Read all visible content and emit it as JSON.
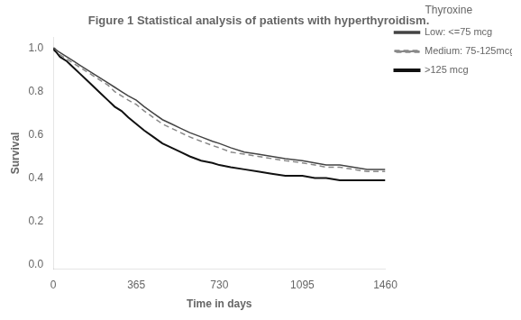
{
  "chart_data": {
    "type": "line",
    "title": "Figure 1 Statistical analysis of patients with hyperthyroidism.",
    "xlabel": "Time in days",
    "ylabel": "Survival",
    "legend_title": "Thyroxine",
    "legend": "right",
    "grid": false,
    "xlim": [
      0,
      1460
    ],
    "ylim": [
      -0.02,
      1.05
    ],
    "xticks": [
      0,
      365,
      730,
      1095,
      1460
    ],
    "yticks": [
      {
        "value": 0.0,
        "label": "0.0"
      },
      0.2,
      0.4,
      0.6,
      0.8,
      {
        "value": 1.0,
        "label": "1.0"
      }
    ],
    "x": [
      0,
      5,
      15,
      30,
      60,
      90,
      120,
      150,
      180,
      210,
      240,
      270,
      300,
      330,
      365,
      400,
      440,
      480,
      520,
      560,
      600,
      650,
      700,
      730,
      780,
      840,
      900,
      960,
      1020,
      1095,
      1150,
      1200,
      1260,
      1320,
      1380,
      1460
    ],
    "series": [
      {
        "name": "Low: <=75 mcg",
        "color": "#444444",
        "line_style": "solid",
        "values": [
          1.0,
          1.0,
          0.99,
          0.98,
          0.96,
          0.94,
          0.92,
          0.9,
          0.88,
          0.86,
          0.84,
          0.82,
          0.8,
          0.78,
          0.76,
          0.73,
          0.7,
          0.67,
          0.65,
          0.63,
          0.61,
          0.59,
          0.57,
          0.56,
          0.54,
          0.52,
          0.51,
          0.5,
          0.49,
          0.48,
          0.47,
          0.46,
          0.46,
          0.45,
          0.44,
          0.44
        ]
      },
      {
        "name": "Medium: 75-125mcg",
        "color": "#888888",
        "line_style": "dashed",
        "values": [
          1.0,
          1.0,
          0.99,
          0.97,
          0.95,
          0.93,
          0.91,
          0.89,
          0.87,
          0.85,
          0.83,
          0.8,
          0.78,
          0.76,
          0.74,
          0.71,
          0.68,
          0.65,
          0.63,
          0.61,
          0.59,
          0.57,
          0.55,
          0.54,
          0.52,
          0.51,
          0.5,
          0.49,
          0.48,
          0.47,
          0.46,
          0.45,
          0.45,
          0.44,
          0.43,
          0.43
        ]
      },
      {
        "name": ">125 mcg",
        "color": "#111111",
        "line_style": "solid",
        "values": [
          1.0,
          0.99,
          0.98,
          0.96,
          0.94,
          0.91,
          0.88,
          0.85,
          0.82,
          0.79,
          0.76,
          0.73,
          0.71,
          0.68,
          0.65,
          0.62,
          0.59,
          0.56,
          0.54,
          0.52,
          0.5,
          0.48,
          0.47,
          0.46,
          0.45,
          0.44,
          0.43,
          0.42,
          0.41,
          0.41,
          0.4,
          0.4,
          0.39,
          0.39,
          0.39,
          0.39
        ]
      }
    ]
  }
}
